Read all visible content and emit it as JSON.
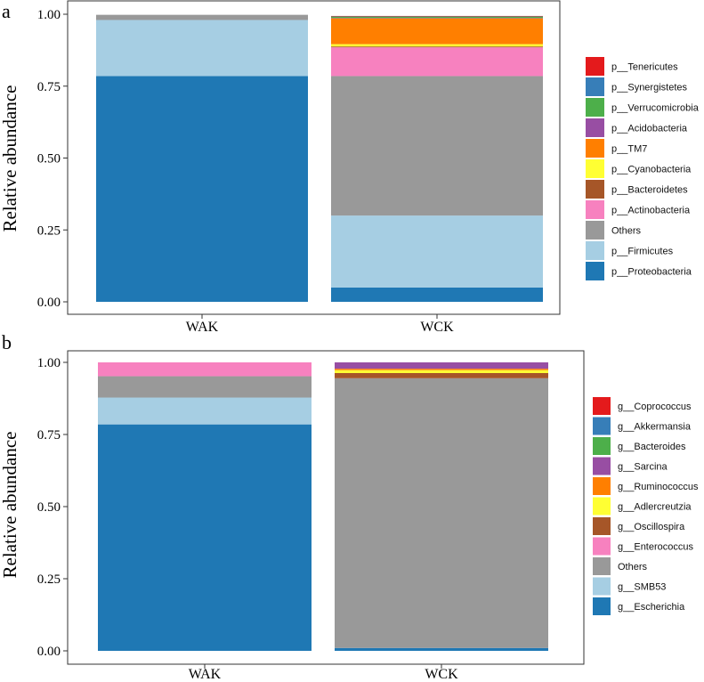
{
  "chart_data": [
    {
      "type": "bar",
      "stacked": true,
      "panel_label": "a",
      "ylabel": "Relative abundance",
      "ylim": [
        0,
        1
      ],
      "yticks": [
        "0.00",
        "0.25",
        "0.50",
        "0.75",
        "1.00"
      ],
      "categories": [
        "WAK",
        "WCK"
      ],
      "legend_position": "right",
      "grid": false,
      "series": [
        {
          "name": "p__Proteobacteria",
          "color": "#1F78B4",
          "values": [
            0.785,
            0.05
          ]
        },
        {
          "name": "p__Firmicutes",
          "color": "#A6CEE3",
          "values": [
            0.195,
            0.25
          ]
        },
        {
          "name": "Others",
          "color": "#999999",
          "values": [
            0.018,
            0.485
          ]
        },
        {
          "name": "p__Actinobacteria",
          "color": "#F781BF",
          "values": [
            0.0,
            0.1
          ]
        },
        {
          "name": "p__Bacteroidetes",
          "color": "#A65628",
          "values": [
            0.0,
            0.003
          ]
        },
        {
          "name": "p__Cyanobacteria",
          "color": "#FFFF33",
          "values": [
            0.0,
            0.008
          ]
        },
        {
          "name": "p__TM7",
          "color": "#FF7F00",
          "values": [
            0.0,
            0.09
          ]
        },
        {
          "name": "p__Acidobacteria",
          "color": "#984EA3",
          "values": [
            0.0,
            0.001
          ]
        },
        {
          "name": "p__Verrucomicrobia",
          "color": "#4DAF4A",
          "values": [
            0.0,
            0.005
          ]
        },
        {
          "name": "p__Synergistetes",
          "color": "#377EB8",
          "values": [
            0.0,
            0.001
          ]
        },
        {
          "name": "p__Tenericutes",
          "color": "#E41A1C",
          "values": [
            0.0,
            0.001
          ]
        }
      ]
    },
    {
      "type": "bar",
      "stacked": true,
      "panel_label": "b",
      "ylabel": "Relative abundance",
      "ylim": [
        0,
        1
      ],
      "yticks": [
        "0.00",
        "0.25",
        "0.50",
        "0.75",
        "1.00"
      ],
      "categories": [
        "WAK",
        "WCK"
      ],
      "legend_position": "right",
      "grid": false,
      "series": [
        {
          "name": "g__Escherichia",
          "color": "#1F78B4",
          "values": [
            0.785,
            0.01
          ]
        },
        {
          "name": "g__SMB53",
          "color": "#A6CEE3",
          "values": [
            0.093,
            0.0
          ]
        },
        {
          "name": "Others",
          "color": "#999999",
          "values": [
            0.074,
            0.935
          ]
        },
        {
          "name": "g__Enterococcus",
          "color": "#F781BF",
          "values": [
            0.048,
            0.0
          ]
        },
        {
          "name": "g__Oscillospira",
          "color": "#A65628",
          "values": [
            0.0,
            0.018
          ]
        },
        {
          "name": "g__Adlercreutzia",
          "color": "#FFFF33",
          "values": [
            0.0,
            0.01
          ]
        },
        {
          "name": "g__Ruminococcus",
          "color": "#FF7F00",
          "values": [
            0.0,
            0.005
          ]
        },
        {
          "name": "g__Sarcina",
          "color": "#984EA3",
          "values": [
            0.0,
            0.022
          ]
        },
        {
          "name": "g__Bacteroides",
          "color": "#4DAF4A",
          "values": [
            0.0,
            0.0
          ]
        },
        {
          "name": "g__Akkermansia",
          "color": "#377EB8",
          "values": [
            0.0,
            0.0
          ]
        },
        {
          "name": "g__Coprococcus",
          "color": "#E41A1C",
          "values": [
            0.0,
            0.0
          ]
        }
      ]
    }
  ]
}
